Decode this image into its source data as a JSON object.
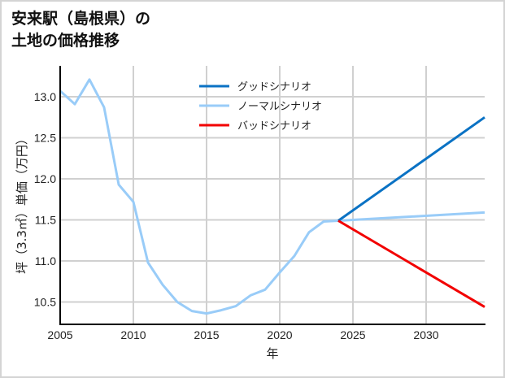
{
  "title": {
    "line1": "安来駅（島根県）の",
    "line2": "土地の価格推移"
  },
  "chart_data": {
    "type": "line",
    "title": "安来駅（島根県）の土地の価格推移",
    "xlabel": "年",
    "ylabel": "坪（3.3㎡）単価（万円）",
    "xlim": [
      2005,
      2034
    ],
    "ylim": [
      10.23,
      13.41
    ],
    "grid": true,
    "legend_position": "upper center",
    "x_ticks": [
      2005,
      2010,
      2015,
      2020,
      2025,
      2030
    ],
    "x_tick_labels": [
      "2005",
      "2010",
      "2015",
      "2020",
      "2025",
      "2030"
    ],
    "y_ticks": [
      10.5,
      11.0,
      11.5,
      12.0,
      12.5,
      13.0
    ],
    "y_tick_labels": [
      "10.5",
      "11.0",
      "11.5",
      "12.0",
      "12.5",
      "13.0"
    ],
    "series": [
      {
        "name": "グッドシナリオ",
        "color": "#0a72c4",
        "x": [
          2024,
          2034
        ],
        "values": [
          11.49,
          12.75
        ]
      },
      {
        "name": "ノーマルシナリオ",
        "color": "#99ccf8",
        "x": [
          2005,
          2006,
          2007,
          2008,
          2009,
          2010,
          2011,
          2012,
          2013,
          2014,
          2015,
          2016,
          2017,
          2018,
          2019,
          2020,
          2021,
          2022,
          2023,
          2024,
          2034
        ],
        "values": [
          13.07,
          12.91,
          13.21,
          12.87,
          11.93,
          11.72,
          10.98,
          10.71,
          10.5,
          10.39,
          10.36,
          10.4,
          10.45,
          10.58,
          10.65,
          10.86,
          11.06,
          11.35,
          11.48,
          11.49,
          11.59
        ]
      },
      {
        "name": "バッドシナリオ",
        "color": "#f20000",
        "x": [
          2024,
          2034
        ],
        "values": [
          11.49,
          10.44
        ]
      }
    ]
  },
  "colors": {
    "axis": "#000000",
    "grid": "#d0d0d0",
    "frame_border": "#d4d4d4"
  }
}
